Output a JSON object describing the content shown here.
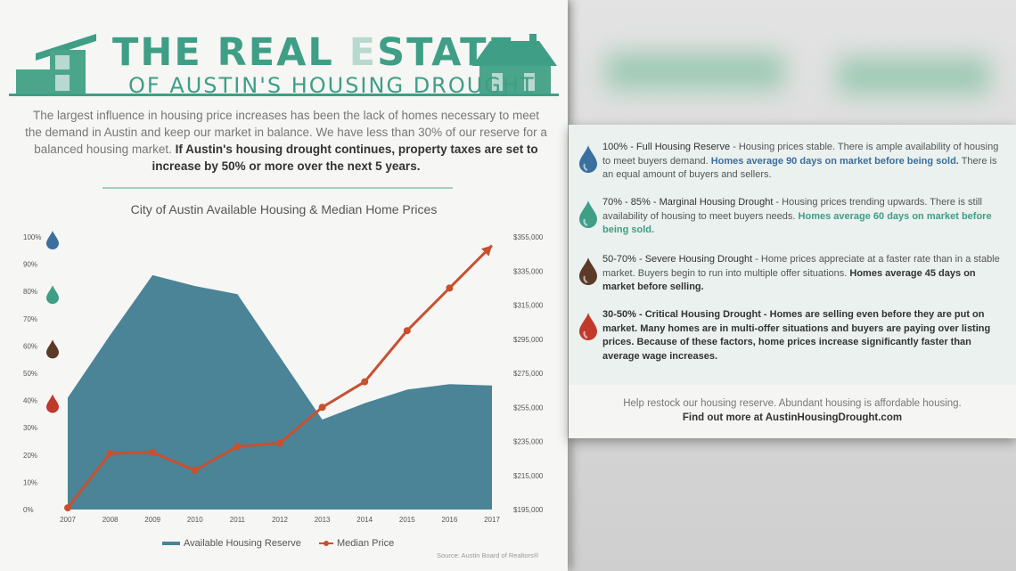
{
  "header": {
    "title_part1": "THE REAL ",
    "title_e": "E",
    "title_part2": "STATE",
    "subtitle": "OF AUSTIN'S HOUSING DROUGHT"
  },
  "intro": {
    "text": "The largest influence in housing price increases has been the lack of homes necessary to meet the demand in Austin and keep our market in balance.  We have less than 30% of our reserve for a balanced housing market.",
    "bold": "If Austin's housing drought continues, property taxes are set to increase by 50% or more over the next 5 years."
  },
  "chart_data": {
    "type": "area",
    "title": "City of Austin Available Housing & Median Home Prices",
    "x": [
      "2007",
      "2008",
      "2009",
      "2010",
      "2011",
      "2012",
      "2013",
      "2014",
      "2015",
      "2016",
      "2017"
    ],
    "series": [
      {
        "name": "Available Housing Reserve",
        "type": "area",
        "axis": "left",
        "color": "#4a8496",
        "values": [
          41,
          64,
          86,
          82,
          79,
          56,
          33,
          39,
          44,
          46,
          45.5
        ]
      },
      {
        "name": "Median Price",
        "type": "line",
        "axis": "right",
        "color": "#c7502f",
        "values": [
          196000,
          228000,
          228500,
          218000,
          232000,
          234000,
          255000,
          270000,
          300000,
          325000,
          350000
        ]
      }
    ],
    "y_left": {
      "ticks": [
        "0%",
        "10%",
        "20%",
        "30%",
        "40%",
        "50%",
        "60%",
        "70%",
        "80%",
        "90%",
        "100%"
      ],
      "ylim": [
        0,
        100
      ]
    },
    "y_right": {
      "ticks": [
        "$195,000",
        "$215,000",
        "$235,000",
        "$255,000",
        "$275,000",
        "$295,000",
        "$315,000",
        "$335,000",
        "$355,000"
      ],
      "ylim": [
        195000,
        355000
      ]
    },
    "legend": [
      "Available Housing Reserve",
      "Median Price"
    ],
    "legend_position": "bottom",
    "source": "Source: Austin Board of Realtors®"
  },
  "colors": {
    "full": "#3a6f9e",
    "marginal": "#3e9e86",
    "severe": "#5b3a28",
    "critical": "#c0392b",
    "area": "#4a8496",
    "line": "#c7502f"
  },
  "levels": [
    {
      "head": "100% - Full Housing Reserve",
      "text": " - Housing prices stable.  There is ample availability of housing to meet buyers demand.",
      "hl": "Homes average 90 days on market before being sold.",
      "tail": "  There is an equal amount of buyers and sellers.",
      "color_key": "full"
    },
    {
      "head": "70% - 85% - Marginal Housing Drought",
      "text": " - Housing prices trending upwards.  There is still availability of housing to meet buyers needs.",
      "hl": "Homes average 60 days on market before being sold.",
      "tail": "",
      "color_key": "marginal"
    },
    {
      "head": "50-70% - Severe Housing Drought",
      "text": " -  Home prices appreciate at a faster rate than in a stable market.  Buyers begin to run into multiple offer situations.",
      "hl": "Homes average 45 days on market before selling.",
      "tail": "",
      "color_key": "severe"
    },
    {
      "head": "30-50% - Critical Housing Drought",
      "text": " - Homes are selling even before they are put on market.  Many homes are in multi-offer situations and buyers are paying over listing prices.  Because of these factors, home prices increase significantly faster than average wage increases.",
      "hl": "",
      "tail": "",
      "color_key": "critical"
    }
  ],
  "footer": {
    "text": "Help restock our housing reserve.  Abundant housing is affordable housing.",
    "bold": "Find out more at AustinHousingDrought.com"
  }
}
